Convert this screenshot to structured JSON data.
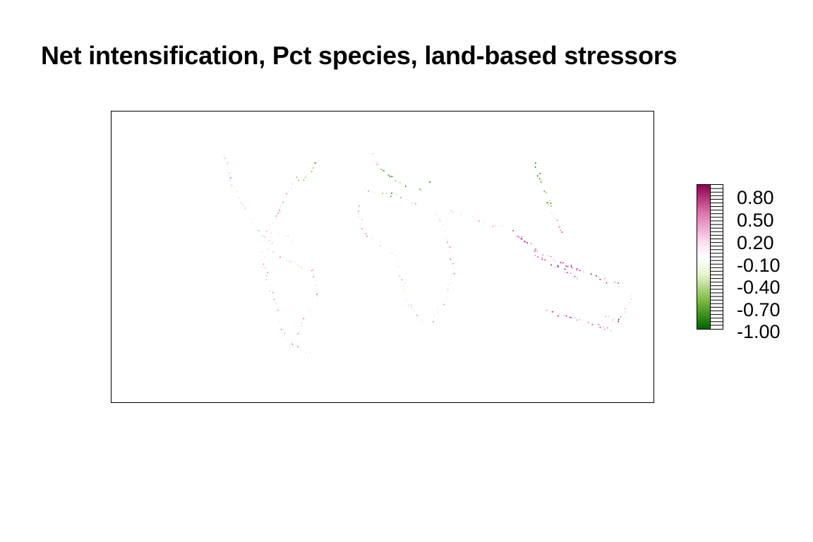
{
  "title": "Net intensification, Pct species, land-based stressors",
  "map": {
    "projection": "world (longitude/latitude)",
    "background": "#ffffff",
    "border_color": "#000000"
  },
  "legend": {
    "range": [
      -1.0,
      1.0
    ],
    "labels": [
      "0.80",
      "0.50",
      "0.20",
      "-0.10",
      "-0.40",
      "-0.70",
      "-1.00"
    ],
    "label_values": [
      0.8,
      0.5,
      0.2,
      -0.1,
      -0.4,
      -0.7,
      -1.0
    ],
    "colors": {
      "max": "#8e0152",
      "high": "#de77ae",
      "mid_high": "#fde0ef",
      "mid": "#ffffff",
      "mid_low": "#e6f5d0",
      "low": "#7fbc41",
      "min": "#006400"
    }
  }
}
